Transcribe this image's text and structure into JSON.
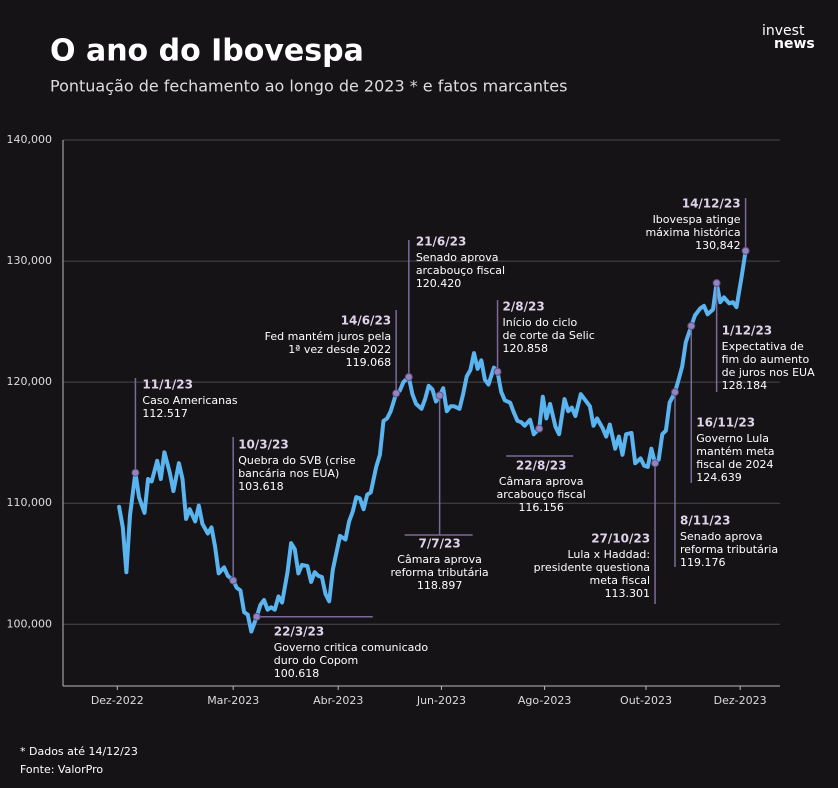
{
  "chart_data": {
    "type": "line",
    "title": "O ano do Ibovespa",
    "subtitle": "Pontuação de fechamento ao longo de 2023 * e fatos marcantes",
    "logo": [
      "invest",
      "news"
    ],
    "notes": [
      "* Dados até 14/12/23",
      "Fonte: ValorPro"
    ],
    "color": "#5ab4f0",
    "grid": true,
    "xlim": [
      -29,
      367
    ],
    "ylim": [
      94900,
      140000
    ],
    "xticks": [
      {
        "value": 1,
        "label": "Dez-2022"
      },
      {
        "value": 65,
        "label": "Mar-2023"
      },
      {
        "value": 123,
        "label": "Abr-2023"
      },
      {
        "value": 180,
        "label": "Jun-2023"
      },
      {
        "value": 237,
        "label": "Ago-2023"
      },
      {
        "value": 293,
        "label": "Out-2023"
      },
      {
        "value": 345,
        "label": "Dez-2023"
      }
    ],
    "yticks": [
      {
        "value": 100000,
        "label": "100,000"
      },
      {
        "value": 110000,
        "label": "110,000"
      },
      {
        "value": 120000,
        "label": "120,000"
      },
      {
        "value": 130000,
        "label": "130,000"
      },
      {
        "value": 140000,
        "label": "140,000"
      }
    ],
    "x": [
      2,
      4,
      6,
      8,
      11,
      13,
      16,
      18,
      20,
      23,
      25,
      27,
      30,
      32,
      35,
      37,
      39,
      41,
      44,
      46,
      48,
      51,
      53,
      55,
      57,
      60,
      62,
      65,
      67,
      69,
      71,
      73,
      75,
      78,
      80,
      82,
      84,
      86,
      88,
      90,
      92,
      95,
      97,
      99,
      101,
      103,
      106,
      108,
      110,
      112,
      114,
      116,
      118,
      120,
      122,
      124,
      127,
      129,
      131,
      133,
      135,
      137,
      139,
      141,
      144,
      146,
      148,
      150,
      152,
      155,
      157,
      159,
      162,
      164,
      166,
      169,
      171,
      173,
      175,
      177,
      179,
      181,
      183,
      185,
      187,
      190,
      192,
      194,
      196,
      198,
      200,
      202,
      204,
      206,
      209,
      211,
      213,
      215,
      218,
      220,
      222,
      224,
      226,
      229,
      231,
      234,
      236,
      238,
      240,
      243,
      245,
      248,
      250,
      252,
      254,
      257,
      259,
      262,
      264,
      266,
      269,
      271,
      273,
      276,
      278,
      280,
      282,
      285,
      287,
      290,
      292,
      294,
      296,
      298,
      300,
      302,
      304,
      306,
      309,
      311,
      313,
      315,
      318,
      320,
      323,
      325,
      327,
      330,
      332,
      334,
      336,
      339,
      341,
      343,
      346,
      348
    ],
    "values": [
      109700,
      108000,
      104300,
      109000,
      112517,
      110500,
      109200,
      112000,
      111800,
      113500,
      112000,
      114200,
      112500,
      111000,
      113300,
      112000,
      108700,
      109500,
      108500,
      109800,
      108300,
      107500,
      108000,
      106400,
      104200,
      104700,
      104000,
      103618,
      103000,
      102800,
      101000,
      100800,
      99400,
      100618,
      101600,
      102000,
      101200,
      101400,
      101200,
      102300,
      101800,
      104300,
      106700,
      106200,
      104200,
      104900,
      104800,
      103500,
      104300,
      104000,
      103900,
      102500,
      101900,
      104500,
      105900,
      107300,
      107000,
      108500,
      109300,
      110500,
      110400,
      109500,
      110700,
      110900,
      113000,
      114000,
      116800,
      117000,
      117600,
      119068,
      119300,
      120000,
      120420,
      119000,
      118200,
      117800,
      118600,
      119700,
      119400,
      118400,
      118897,
      119500,
      117600,
      118000,
      118000,
      117800,
      119000,
      120500,
      121000,
      122400,
      121100,
      121800,
      120200,
      119800,
      121200,
      120858,
      119200,
      118500,
      118300,
      117500,
      116800,
      116700,
      116400,
      116900,
      115700,
      116156,
      118800,
      117000,
      118200,
      116300,
      115700,
      118600,
      117600,
      117900,
      117200,
      119000,
      118600,
      118000,
      116400,
      117000,
      116200,
      115500,
      116500,
      114500,
      115500,
      114000,
      115700,
      115800,
      113300,
      113700,
      113100,
      113000,
      114500,
      113301,
      113600,
      115700,
      116000,
      118300,
      119176,
      120200,
      121300,
      123300,
      124639,
      125500,
      126100,
      126300,
      125600,
      126000,
      128184,
      126600,
      127000,
      126500,
      126600,
      126200,
      128900,
      130842
    ],
    "annotations": [
      {
        "date": "11/1/23",
        "text": [
          "Caso Americanas"
        ],
        "x": 11,
        "value": 112517,
        "value_label": "112.517"
      },
      {
        "date": "10/3/23",
        "text": [
          "Quebra do SVB (crise",
          "bancária nos EUA)"
        ],
        "x": 65,
        "value": 103618,
        "value_label": "103.618"
      },
      {
        "date": "22/3/23",
        "text": [
          "Governo critica comunicado",
          "duro do Copom"
        ],
        "x": 78,
        "value": 100618,
        "value_label": "100.618"
      },
      {
        "date": "14/6/23",
        "text": [
          "Fed mantém juros pela",
          "1ª vez desde 2022"
        ],
        "x": 155,
        "value": 119068,
        "value_label": "119.068"
      },
      {
        "date": "21/6/23",
        "text": [
          "Senado aprova",
          "arcabouço fiscal"
        ],
        "x": 162,
        "value": 120420,
        "value_label": "120.420"
      },
      {
        "date": "7/7/23",
        "text": [
          "Câmara aprova",
          "reforma tributária"
        ],
        "x": 179,
        "value": 118897,
        "value_label": "118.897"
      },
      {
        "date": "2/8/23",
        "text": [
          "Início do ciclo",
          "de corte da Selic"
        ],
        "x": 211,
        "value": 120858,
        "value_label": "120.858"
      },
      {
        "date": "22/8/23",
        "text": [
          "Câmara aprova",
          "arcabouço fiscal"
        ],
        "x": 234,
        "value": 116156,
        "value_label": "116.156"
      },
      {
        "date": "27/10/23",
        "text": [
          "Lula x Haddad:",
          "presidente questiona",
          "meta fiscal"
        ],
        "x": 298,
        "value": 113301,
        "value_label": "113.301"
      },
      {
        "date": "8/11/23",
        "text": [
          "Senado aprova",
          "reforma tributária"
        ],
        "x": 309,
        "value": 119176,
        "value_label": "119.176"
      },
      {
        "date": "16/11/23",
        "text": [
          "Governo Lula",
          "mantém meta",
          "fiscal de 2024"
        ],
        "x": 318,
        "value": 124639,
        "value_label": "124.639"
      },
      {
        "date": "1/12/23",
        "text": [
          "Expectativa de",
          "fim do aumento",
          "de juros nos EUA"
        ],
        "x": 332,
        "value": 128184,
        "value_label": "128.184"
      },
      {
        "date": "14/12/23",
        "text": [
          "Ibovespa atinge",
          "máxima histórica"
        ],
        "x": 348,
        "value": 130842,
        "value_label": "130,842"
      }
    ]
  }
}
